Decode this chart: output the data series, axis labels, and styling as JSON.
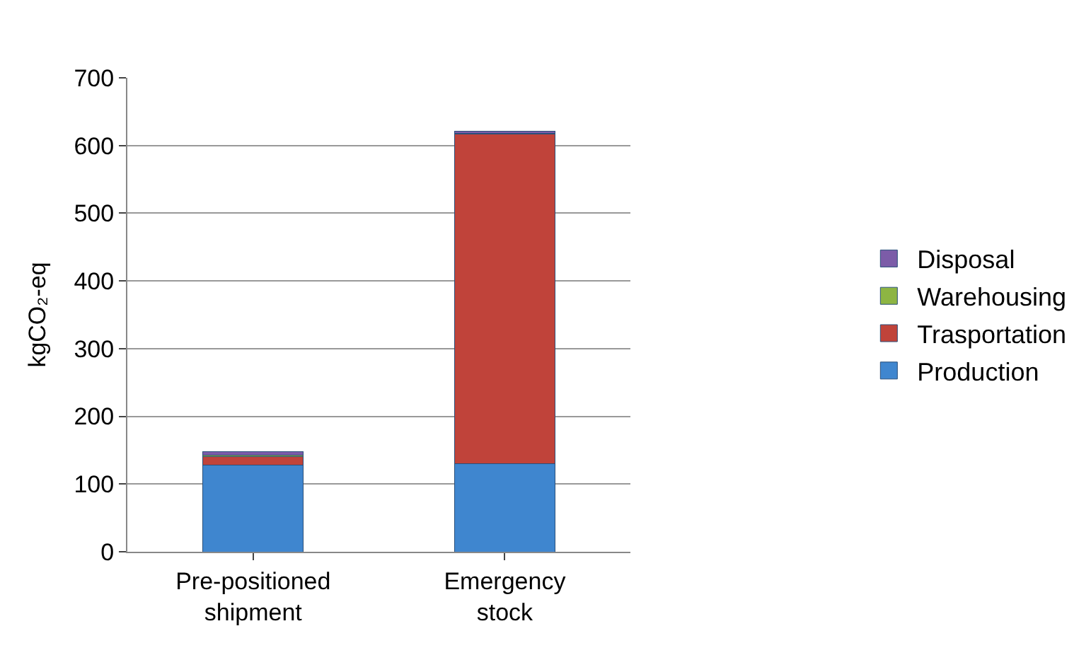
{
  "chart_data": {
    "type": "bar",
    "stacked": true,
    "ylabel": "kgCO₂-eq",
    "categories": [
      "Pre-positioned shipment",
      "Emergency stock"
    ],
    "series": [
      {
        "name": "Production",
        "color": "#3f86cf",
        "values": [
          128,
          130
        ]
      },
      {
        "name": "Trasportation",
        "color": "#c0433a",
        "values": [
          13,
          487
        ]
      },
      {
        "name": "Warehousing",
        "color": "#8db543",
        "values": [
          2,
          1
        ]
      },
      {
        "name": "Disposal",
        "color": "#7c5ca8",
        "values": [
          5,
          3
        ]
      }
    ],
    "ylim": [
      0,
      700
    ],
    "yticks": [
      0,
      100,
      200,
      300,
      400,
      500,
      600,
      700
    ],
    "grid": "y",
    "legend": "right"
  }
}
